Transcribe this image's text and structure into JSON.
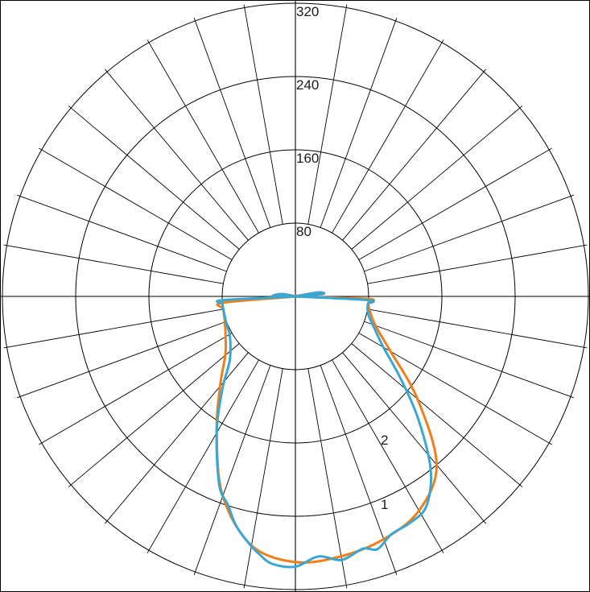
{
  "chart_data": {
    "type": "polar",
    "radial_axis": {
      "ticks": [
        80,
        160,
        240,
        320
      ],
      "tick_labels": [
        "80",
        "160",
        "240",
        "320"
      ],
      "range": [
        0,
        320
      ]
    },
    "angular_axis": {
      "spoke_interval_deg": 10
    },
    "grid": true,
    "series": [
      {
        "label": "1",
        "color": "#3aa7d2",
        "angles": [
          0,
          5,
          10,
          15,
          18,
          22,
          27,
          32,
          38,
          45,
          52,
          60,
          68,
          75,
          80,
          84,
          87,
          88,
          90,
          95,
          100,
          120,
          140,
          160,
          175,
          180,
          185,
          200,
          220,
          240,
          260,
          270,
          272,
          273,
          276,
          280,
          292,
          300,
          308,
          315,
          322,
          330,
          338,
          342,
          345,
          347,
          350,
          352,
          355,
          360
        ],
        "values": [
          295,
          285,
          292,
          285,
          290,
          280,
          277,
          270,
          240,
          190,
          146,
          111,
          93,
          83,
          80,
          79.5,
          80,
          0,
          5,
          30,
          25,
          0,
          0,
          0,
          0,
          0,
          0,
          0,
          0,
          0,
          15,
          25,
          0,
          80,
          80,
          80,
          81,
          83,
          90,
          102,
          130,
          172,
          222,
          239,
          256,
          265,
          277,
          284,
          293,
          295
        ]
      },
      {
        "label": "2",
        "color": "#ef7f1a",
        "angles": [
          0,
          10,
          20,
          30,
          40,
          50,
          60,
          70,
          80,
          85,
          88,
          90,
          95,
          100,
          120,
          140,
          160,
          175,
          180,
          185,
          200,
          220,
          240,
          260,
          270,
          272,
          275,
          280,
          290,
          300,
          310,
          320,
          330,
          340,
          350,
          360
        ],
        "values": [
          290,
          288,
          282,
          270,
          240,
          174,
          120,
          93,
          82,
          80,
          80,
          0,
          30,
          25,
          0,
          0,
          0,
          0,
          0,
          0,
          0,
          0,
          0,
          15,
          25,
          0,
          80,
          80,
          82,
          88,
          100,
          128,
          172,
          232,
          276,
          290
        ]
      }
    ]
  }
}
